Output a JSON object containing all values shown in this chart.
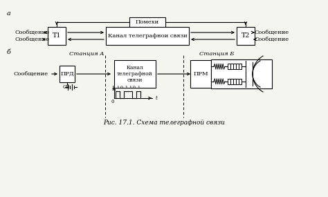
{
  "title": "Рис. 17.1. Схема телеграфной связи",
  "background_color": "#f5f5f0",
  "label_a": "а",
  "label_b": "б",
  "pomekhi": "Помехи",
  "kanal1": "Канал телеграфнои связи",
  "kanal2": "Канал\nтелеграфной\nсвязи",
  "t1": "Т1",
  "t2": "Т2",
  "prd": "ПРД",
  "prm": "ПРМ",
  "gb": "GB",
  "stanA": "Станция А",
  "stanB": "Станция Б",
  "soobshenie": "Сообщение",
  "i_label": "I",
  "zero_label": "0",
  "t_label": "t"
}
